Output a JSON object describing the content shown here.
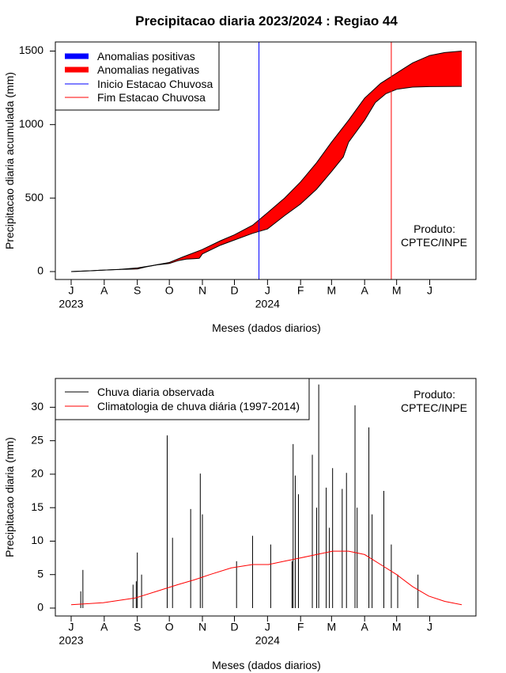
{
  "page": {
    "title": "Precipitacao diaria 2023/2024 : Regiao 44"
  },
  "colors": {
    "positive_anomaly": "#0000ff",
    "negative_anomaly": "#ff0000",
    "onset_line": "#0000ff",
    "end_line": "#ff0000",
    "observed_rain": "#000000",
    "climatology": "#ff0000"
  },
  "chart_data": [
    {
      "id": "accumulated",
      "type": "area",
      "title": "Precipitacao diaria 2023/2024 : Regiao 44",
      "xlabel": "Meses (dados diarios)",
      "ylabel": "Precipitacao diaria acumulada (mm)",
      "xlim": [
        0,
        366
      ],
      "ylim": [
        0,
        1500
      ],
      "month_ticks": [
        {
          "label": "J",
          "day": 0
        },
        {
          "label": "A",
          "day": 31
        },
        {
          "label": "S",
          "day": 62
        },
        {
          "label": "O",
          "day": 92
        },
        {
          "label": "N",
          "day": 123
        },
        {
          "label": "D",
          "day": 153
        },
        {
          "label": "J",
          "day": 184
        },
        {
          "label": "F",
          "day": 215
        },
        {
          "label": "M",
          "day": 244
        },
        {
          "label": "A",
          "day": 275
        },
        {
          "label": "M",
          "day": 305
        },
        {
          "label": "J",
          "day": 336
        }
      ],
      "year_ticks": [
        {
          "label": "2023",
          "day": 0
        },
        {
          "label": "2024",
          "day": 184
        }
      ],
      "y_ticks": [
        0,
        500,
        1000,
        1500
      ],
      "legend_position": "top-left",
      "legend": [
        {
          "label": "Anomalias positivas",
          "style": "thick-line",
          "color": "#0000ff"
        },
        {
          "label": "Anomalias negativas",
          "style": "thick-line",
          "color": "#ff0000"
        },
        {
          "label": "Inicio Estacao Chuvosa",
          "style": "thin-line",
          "color": "#0000ff"
        },
        {
          "label": "Fim Estacao Chuvosa",
          "style": "thin-line",
          "color": "#ff0000"
        }
      ],
      "annotation": [
        "Produto:",
        "CPTEC/INPE"
      ],
      "rainy_season_start_day": 176,
      "rainy_season_end_day": 300,
      "series": [
        {
          "name": "climatology_accumulated",
          "points": [
            [
              0,
              0
            ],
            [
              20,
              6
            ],
            [
              31,
              10
            ],
            [
              45,
              15
            ],
            [
              62,
              25
            ],
            [
              75,
              40
            ],
            [
              92,
              62
            ],
            [
              105,
              100
            ],
            [
              123,
              150
            ],
            [
              140,
              210
            ],
            [
              153,
              250
            ],
            [
              170,
              315
            ],
            [
              184,
              400
            ],
            [
              200,
              500
            ],
            [
              215,
              610
            ],
            [
              230,
              740
            ],
            [
              244,
              880
            ],
            [
              260,
              1030
            ],
            [
              275,
              1180
            ],
            [
              290,
              1280
            ],
            [
              305,
              1350
            ],
            [
              320,
              1420
            ],
            [
              336,
              1470
            ],
            [
              350,
              1490
            ],
            [
              366,
              1500
            ]
          ]
        },
        {
          "name": "observed_accumulated",
          "points": [
            [
              0,
              0
            ],
            [
              20,
              6
            ],
            [
              31,
              10
            ],
            [
              45,
              14
            ],
            [
              55,
              16
            ],
            [
              62,
              18
            ],
            [
              70,
              32
            ],
            [
              80,
              45
            ],
            [
              92,
              55
            ],
            [
              100,
              74
            ],
            [
              108,
              85
            ],
            [
              115,
              88
            ],
            [
              120,
              90
            ],
            [
              123,
              120
            ],
            [
              140,
              180
            ],
            [
              153,
              215
            ],
            [
              170,
              260
            ],
            [
              184,
              290
            ],
            [
              200,
              380
            ],
            [
              215,
              460
            ],
            [
              230,
              560
            ],
            [
              244,
              680
            ],
            [
              255,
              780
            ],
            [
              260,
              880
            ],
            [
              275,
              1030
            ],
            [
              285,
              1150
            ],
            [
              295,
              1210
            ],
            [
              305,
              1240
            ],
            [
              320,
              1255
            ],
            [
              336,
              1258
            ],
            [
              366,
              1260
            ]
          ]
        }
      ]
    },
    {
      "id": "daily",
      "type": "bar",
      "xlabel": "Meses (dados diarios)",
      "ylabel": "Precipitacao diaria (mm)",
      "xlim": [
        0,
        366
      ],
      "ylim": [
        0,
        33
      ],
      "y_ticks": [
        0,
        5,
        10,
        15,
        20,
        25,
        30
      ],
      "legend_position": "top-left",
      "legend": [
        {
          "label": "Chuva diaria observada",
          "style": "thin-line",
          "color": "#000000"
        },
        {
          "label": "Climatologia de chuva diária (1997-2014)",
          "style": "thin-line",
          "color": "#ff0000"
        }
      ],
      "annotation": [
        "Produto:",
        "CPTEC/INPE"
      ],
      "observed_peaks": [
        {
          "day": 9,
          "value": 2.5
        },
        {
          "day": 11,
          "value": 5.7
        },
        {
          "day": 58,
          "value": 3.5
        },
        {
          "day": 61,
          "value": 4.0
        },
        {
          "day": 62,
          "value": 8.3
        },
        {
          "day": 66,
          "value": 5.0
        },
        {
          "day": 90,
          "value": 25.8
        },
        {
          "day": 95,
          "value": 10.5
        },
        {
          "day": 112,
          "value": 14.8
        },
        {
          "day": 121,
          "value": 20.1
        },
        {
          "day": 123,
          "value": 14.0
        },
        {
          "day": 155,
          "value": 7.0
        },
        {
          "day": 170,
          "value": 10.8
        },
        {
          "day": 187,
          "value": 9.5
        },
        {
          "day": 207,
          "value": 7.0
        },
        {
          "day": 208,
          "value": 24.5
        },
        {
          "day": 210,
          "value": 19.8
        },
        {
          "day": 213,
          "value": 17.0
        },
        {
          "day": 226,
          "value": 22.9
        },
        {
          "day": 230,
          "value": 15.0
        },
        {
          "day": 232,
          "value": 33.4
        },
        {
          "day": 239,
          "value": 18.0
        },
        {
          "day": 242,
          "value": 12.0
        },
        {
          "day": 245,
          "value": 20.9
        },
        {
          "day": 254,
          "value": 17.8
        },
        {
          "day": 258,
          "value": 20.2
        },
        {
          "day": 266,
          "value": 30.3
        },
        {
          "day": 268,
          "value": 15.0
        },
        {
          "day": 279,
          "value": 27.0
        },
        {
          "day": 282,
          "value": 14.0
        },
        {
          "day": 293,
          "value": 17.5
        },
        {
          "day": 300,
          "value": 9.5
        },
        {
          "day": 306,
          "value": 5.0
        },
        {
          "day": 325,
          "value": 5.0
        }
      ],
      "climatology_points": [
        [
          0,
          0.5
        ],
        [
          30,
          0.8
        ],
        [
          60,
          1.5
        ],
        [
          80,
          2.5
        ],
        [
          100,
          3.5
        ],
        [
          115,
          4.2
        ],
        [
          130,
          5.0
        ],
        [
          150,
          6.0
        ],
        [
          170,
          6.5
        ],
        [
          185,
          6.5
        ],
        [
          200,
          7.0
        ],
        [
          215,
          7.5
        ],
        [
          230,
          8.0
        ],
        [
          245,
          8.5
        ],
        [
          260,
          8.5
        ],
        [
          275,
          8.0
        ],
        [
          290,
          6.5
        ],
        [
          305,
          5.0
        ],
        [
          320,
          3.2
        ],
        [
          335,
          1.8
        ],
        [
          350,
          1.0
        ],
        [
          366,
          0.5
        ]
      ]
    }
  ]
}
